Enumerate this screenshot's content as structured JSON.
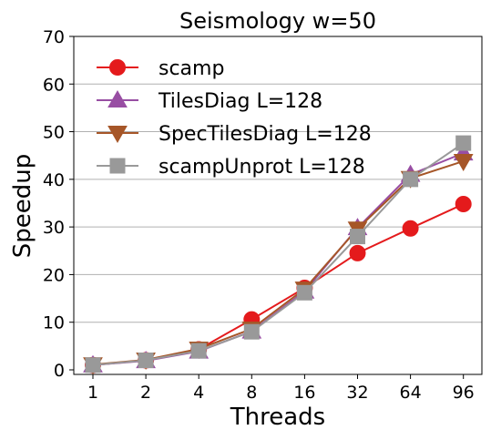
{
  "chart_data": {
    "type": "line",
    "title": "Seismology w=50",
    "xlabel": "Threads",
    "ylabel": "Speedup",
    "categories": [
      "1",
      "2",
      "4",
      "8",
      "16",
      "32",
      "64",
      "96"
    ],
    "ylim": [
      0,
      70
    ],
    "yticks": [
      "0",
      "10",
      "20",
      "30",
      "40",
      "50",
      "60",
      "70"
    ],
    "grid": "horizontal",
    "legend_position": "top-left",
    "series": [
      {
        "name": "scamp",
        "color": "#e41a1c",
        "marker": "circle",
        "values": [
          1,
          2,
          4.3,
          10.6,
          17.2,
          24.5,
          29.7,
          34.8
        ]
      },
      {
        "name": "TilesDiag L=128",
        "color": "#984ea3",
        "marker": "triangle-up",
        "values": [
          1,
          1.9,
          3.9,
          8.1,
          16.5,
          29.8,
          41.0,
          45.5
        ]
      },
      {
        "name": "SpecTilesDiag L=128",
        "color": "#a65628",
        "marker": "triangle-down",
        "values": [
          1.1,
          2.1,
          4.4,
          8.6,
          17.0,
          29.6,
          40.2,
          43.8
        ]
      },
      {
        "name": "scampUnprot L=128",
        "color": "#999999",
        "marker": "square",
        "values": [
          1,
          2,
          4.0,
          8.0,
          16.2,
          28.0,
          40.0,
          47.6
        ]
      }
    ]
  }
}
